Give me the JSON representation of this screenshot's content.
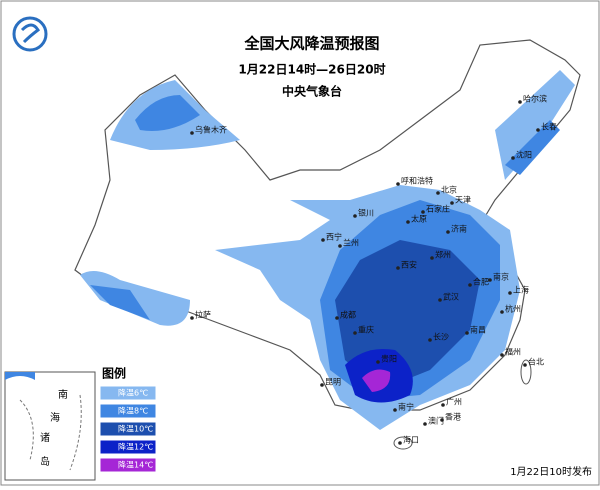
{
  "header": {
    "title": "全国大风降温预报图",
    "period": "1月22日14时—26日20时",
    "issuer": "中央气象台"
  },
  "legend": {
    "title": "图例",
    "items": [
      {
        "label": "降温6℃",
        "color": "#86b8f0"
      },
      {
        "label": "降温8℃",
        "color": "#3f86e2"
      },
      {
        "label": "降温10℃",
        "color": "#1d4fae"
      },
      {
        "label": "降温12℃",
        "color": "#0c22c8"
      },
      {
        "label": "降温14℃",
        "color": "#a526d6"
      }
    ]
  },
  "cities": [
    "乌鲁木齐",
    "哈尔滨",
    "长春",
    "沈阳",
    "呼和浩特",
    "北京",
    "天津",
    "石家庄",
    "太原",
    "济南",
    "银川",
    "西宁",
    "兰州",
    "郑州",
    "西安",
    "合肥",
    "南京",
    "上海",
    "杭州",
    "武汉",
    "成都",
    "重庆",
    "长沙",
    "南昌",
    "福州",
    "拉萨",
    "贵阳",
    "昆明",
    "南宁",
    "广州",
    "香港",
    "澳门",
    "海口",
    "台北"
  ],
  "inset": {
    "labels": [
      "南",
      "海",
      "诸",
      "岛"
    ]
  },
  "footer": "1月22日10时发布"
}
